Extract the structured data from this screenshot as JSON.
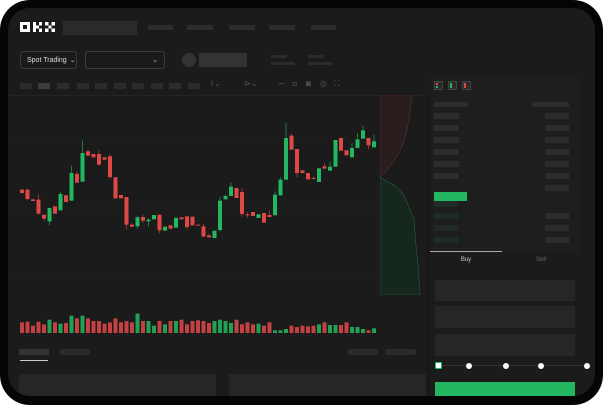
{
  "header": {
    "logo": "OKX",
    "trading_mode": "Spot Trading"
  },
  "orderbook": {
    "view_icons": [
      "orderbook-both-icon",
      "orderbook-buy-icon",
      "orderbook-sell-icon"
    ]
  },
  "order_form": {
    "tabs": [
      {
        "label": "Buy",
        "active": true
      },
      {
        "label": "Sell",
        "active": false
      }
    ],
    "slider_percent": 0,
    "slider_stops": [
      0,
      25,
      50,
      75,
      100
    ]
  },
  "colors": {
    "up": "#22b760",
    "down": "#e04848",
    "background": "#1b1b1b",
    "accent": "#22b760"
  },
  "chart_data": {
    "type": "candlestick",
    "candles": [
      [
        445,
        435,
        448,
        433
      ],
      [
        445,
        417,
        448,
        414
      ],
      [
        416,
        411,
        416,
        411
      ],
      [
        415,
        373,
        430,
        370
      ],
      [
        370,
        358,
        370,
        352
      ],
      [
        350,
        390,
        350,
        338
      ],
      [
        395,
        373,
        395,
        373
      ],
      [
        383,
        432,
        438,
        383
      ],
      [
        428,
        408,
        428,
        408
      ],
      [
        412,
        495,
        518,
        412
      ],
      [
        492,
        466,
        500,
        466
      ],
      [
        469,
        555,
        593,
        469
      ],
      [
        560,
        547,
        564,
        547
      ],
      [
        552,
        542,
        552,
        542
      ],
      [
        552,
        520,
        565,
        517
      ],
      [
        542,
        535,
        542,
        535
      ],
      [
        545,
        482,
        552,
        482
      ],
      [
        482,
        419,
        482,
        419
      ],
      [
        429,
        419,
        429,
        419
      ],
      [
        423,
        340,
        423,
        325
      ],
      [
        340,
        334,
        344,
        334
      ],
      [
        335,
        362,
        367,
        328
      ],
      [
        363,
        352,
        370,
        345
      ],
      [
        350,
        355,
        360,
        335
      ],
      [
        356,
        369,
        369,
        356
      ],
      [
        370,
        323,
        370,
        313
      ],
      [
        322,
        334,
        334,
        322
      ],
      [
        338,
        328,
        338,
        328
      ],
      [
        331,
        360,
        364,
        331
      ],
      [
        362,
        356,
        362,
        356
      ],
      [
        365,
        333,
        365,
        325
      ],
      [
        364,
        338,
        364,
        338
      ],
      [
        340,
        338,
        340,
        338
      ],
      [
        335,
        304,
        342,
        304
      ],
      [
        308,
        302,
        312,
        302
      ],
      [
        300,
        322,
        322,
        300
      ],
      [
        324,
        412,
        424,
        320
      ],
      [
        416,
        426,
        430,
        416
      ],
      [
        426,
        454,
        467,
        426
      ],
      [
        450,
        420,
        450,
        420
      ],
      [
        438,
        372,
        450,
        364
      ],
      [
        371,
        369,
        377,
        360
      ],
      [
        378,
        366,
        378,
        366
      ],
      [
        360,
        371,
        371,
        360
      ],
      [
        375,
        346,
        375,
        346
      ],
      [
        369,
        363,
        383,
        363
      ],
      [
        368,
        430,
        440,
        368
      ],
      [
        428,
        475,
        482,
        428
      ],
      [
        475,
        600,
        645,
        475
      ],
      [
        607,
        565,
        613,
        565
      ],
      [
        567,
        495,
        567,
        483
      ],
      [
        503,
        495,
        503,
        495
      ],
      [
        495,
        476,
        495,
        476
      ],
      [
        480,
        477,
        485,
        477
      ],
      [
        468,
        509,
        509,
        468
      ],
      [
        515,
        508,
        525,
        508
      ],
      [
        502,
        514,
        530,
        502
      ],
      [
        514,
        594,
        594,
        514
      ],
      [
        600,
        562,
        600,
        562
      ],
      [
        563,
        548,
        563,
        548
      ],
      [
        542,
        570,
        585,
        542
      ],
      [
        570,
        596,
        615,
        570
      ],
      [
        598,
        623,
        637,
        598
      ],
      [
        600,
        578,
        600,
        567
      ],
      [
        572,
        590,
        610,
        572
      ]
    ],
    "volume": [
      32,
      34,
      22,
      34,
      26,
      40,
      32,
      28,
      30,
      52,
      44,
      52,
      44,
      36,
      36,
      28,
      32,
      44,
      32,
      36,
      32,
      58,
      36,
      36,
      22,
      36,
      26,
      36,
      36,
      40,
      26,
      36,
      38,
      36,
      30,
      36,
      40,
      36,
      30,
      40,
      26,
      32,
      26,
      28,
      22,
      32,
      8,
      8,
      12,
      22,
      18,
      22,
      20,
      22,
      26,
      32,
      24,
      24,
      24,
      32,
      18,
      18,
      12,
      8,
      14
    ]
  }
}
